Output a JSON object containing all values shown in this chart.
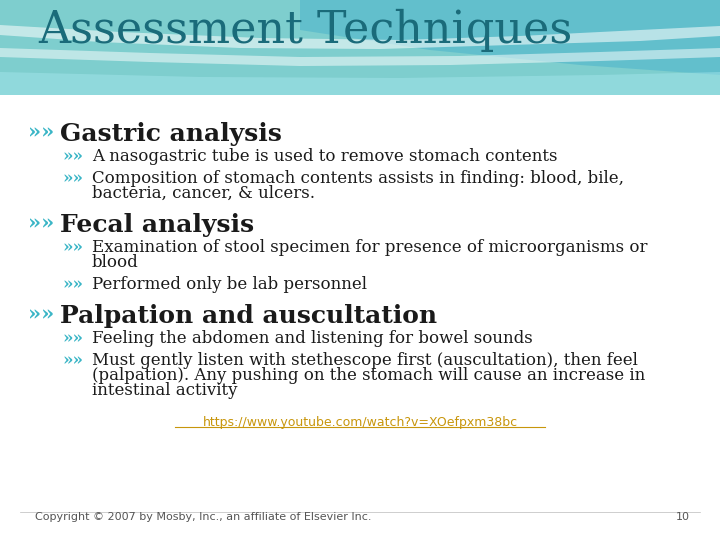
{
  "title": "Assessment Techniques",
  "title_color": "#1a6b7a",
  "title_fontsize": 32,
  "bg_color": "#ffffff",
  "body_text_color": "#1a1a1a",
  "bullet_color": "#3ab5c6",
  "link_color": "#c8960c",
  "footer_text_color": "#555555",
  "page_number": "10",
  "sections": [
    {
      "heading": "Gastric analysis",
      "items": [
        "A nasogastric tube is used to remove stomach contents",
        "Composition of stomach contents assists in finding: blood, bile,\nbacteria, cancer, & ulcers."
      ]
    },
    {
      "heading": "Fecal analysis",
      "items": [
        "Examination of stool specimen for presence of microorganisms or\nblood",
        "Performed only be lab personnel"
      ]
    },
    {
      "heading": "Palpation and auscultation",
      "items": [
        "Feeling the abdomen and listening for bowel sounds",
        "Must gently listen with stethescope first (auscultation), then feel\n(palpation). Any pushing on the stomach will cause an increase in\nintestinal activity"
      ]
    }
  ],
  "link_text": "https://www.youtube.com/watch?v=XOefpxm38bc",
  "footer_text": "Copyright © 2007 by Mosby, Inc., an affiliate of Elsevier Inc.",
  "heading_fontsize": 18,
  "item_fontsize": 12,
  "footer_fontsize": 8
}
